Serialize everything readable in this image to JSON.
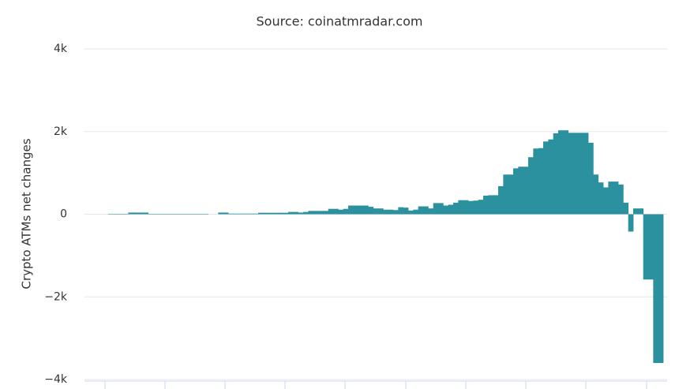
{
  "chart_data": {
    "type": "bar",
    "title": "Source: coinatmradar.com",
    "y_label": "Crypto ATMs net changes",
    "color": "#2b919f",
    "grid": true,
    "ylim": [
      -4000,
      4000
    ],
    "yticks": [
      {
        "value": -4000,
        "label": "−4k"
      },
      {
        "value": -2000,
        "label": "−2k"
      },
      0,
      {
        "value": 2000,
        "label": "2k"
      },
      {
        "value": 4000,
        "label": "4k"
      }
    ],
    "values": [
      10,
      10,
      10,
      10,
      40,
      40,
      40,
      40,
      10,
      10,
      10,
      10,
      10,
      10,
      10,
      10,
      10,
      10,
      10,
      10,
      0,
      0,
      40,
      40,
      15,
      15,
      15,
      15,
      15,
      15,
      35,
      35,
      35,
      35,
      35,
      35,
      55,
      55,
      40,
      55,
      80,
      80,
      80,
      80,
      130,
      130,
      110,
      130,
      210,
      210,
      210,
      210,
      180,
      140,
      140,
      110,
      110,
      100,
      170,
      160,
      90,
      110,
      190,
      190,
      140,
      270,
      270,
      210,
      230,
      280,
      340,
      340,
      320,
      330,
      350,
      450,
      460,
      460,
      680,
      960,
      960,
      1110,
      1150,
      1150,
      1380,
      1590,
      1600,
      1760,
      1810,
      1960,
      2030,
      2030,
      1970,
      1970,
      1970,
      1970,
      1730,
      960,
      770,
      650,
      790,
      790,
      720,
      280,
      -420,
      140,
      140,
      -1580,
      -1580,
      -3600,
      -3600
    ]
  }
}
